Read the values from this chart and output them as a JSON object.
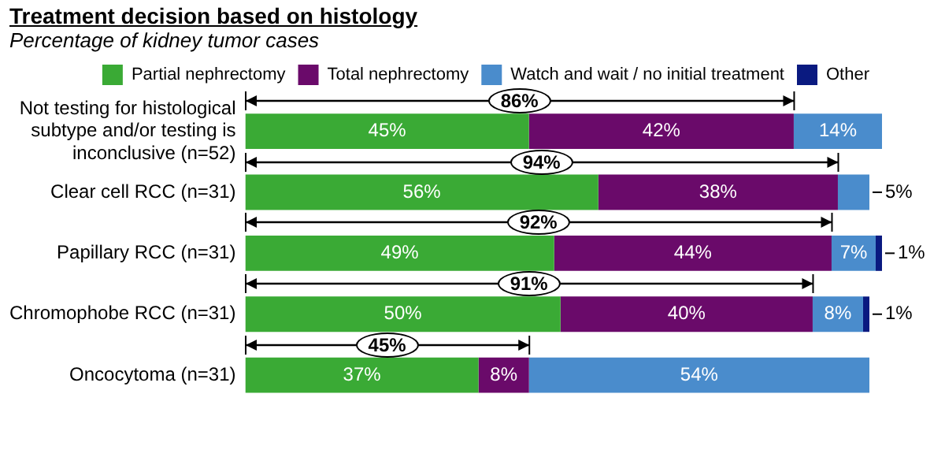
{
  "chart_data": {
    "type": "bar",
    "orientation": "horizontal",
    "stacked": true,
    "title": "Treatment decision based on histology",
    "subtitle": "Percentage of kidney tumor cases",
    "categories": [
      "Not testing for histological subtype and/or testing is inconclusive (n=52)",
      "Clear cell RCC (n=31)",
      "Papillary RCC (n=31)",
      "Chromophobe RCC (n=31)",
      "Oncocytoma (n=31)"
    ],
    "series": [
      {
        "name": "Partial nephrectomy",
        "color": "#3aaa35",
        "values": [
          45,
          56,
          49,
          50,
          37
        ],
        "value_labels": [
          "45%",
          "56%",
          "49%",
          "50%",
          "37%"
        ]
      },
      {
        "name": "Total nephrectomy",
        "color": "#6a0a6a",
        "values": [
          42,
          38,
          44,
          40,
          8
        ],
        "value_labels": [
          "42%",
          "38%",
          "44%",
          "40%",
          "8%"
        ]
      },
      {
        "name": "Watch and wait / no initial treatment",
        "color": "#4a8ccc",
        "values": [
          14,
          5,
          7,
          8,
          54
        ],
        "value_labels": [
          "14%",
          "5%",
          "7%",
          "8%",
          "54%"
        ]
      },
      {
        "name": "Other",
        "color": "#0a1a80",
        "values": [
          null,
          null,
          1,
          1,
          null
        ],
        "value_labels": [
          null,
          null,
          "1%",
          "1%",
          null
        ]
      }
    ],
    "annotations": [
      "86%",
      "94%",
      "92%",
      "91%",
      "45%"
    ],
    "xlim": [
      0,
      101
    ],
    "tick_labels": "y",
    "legend": "top"
  }
}
